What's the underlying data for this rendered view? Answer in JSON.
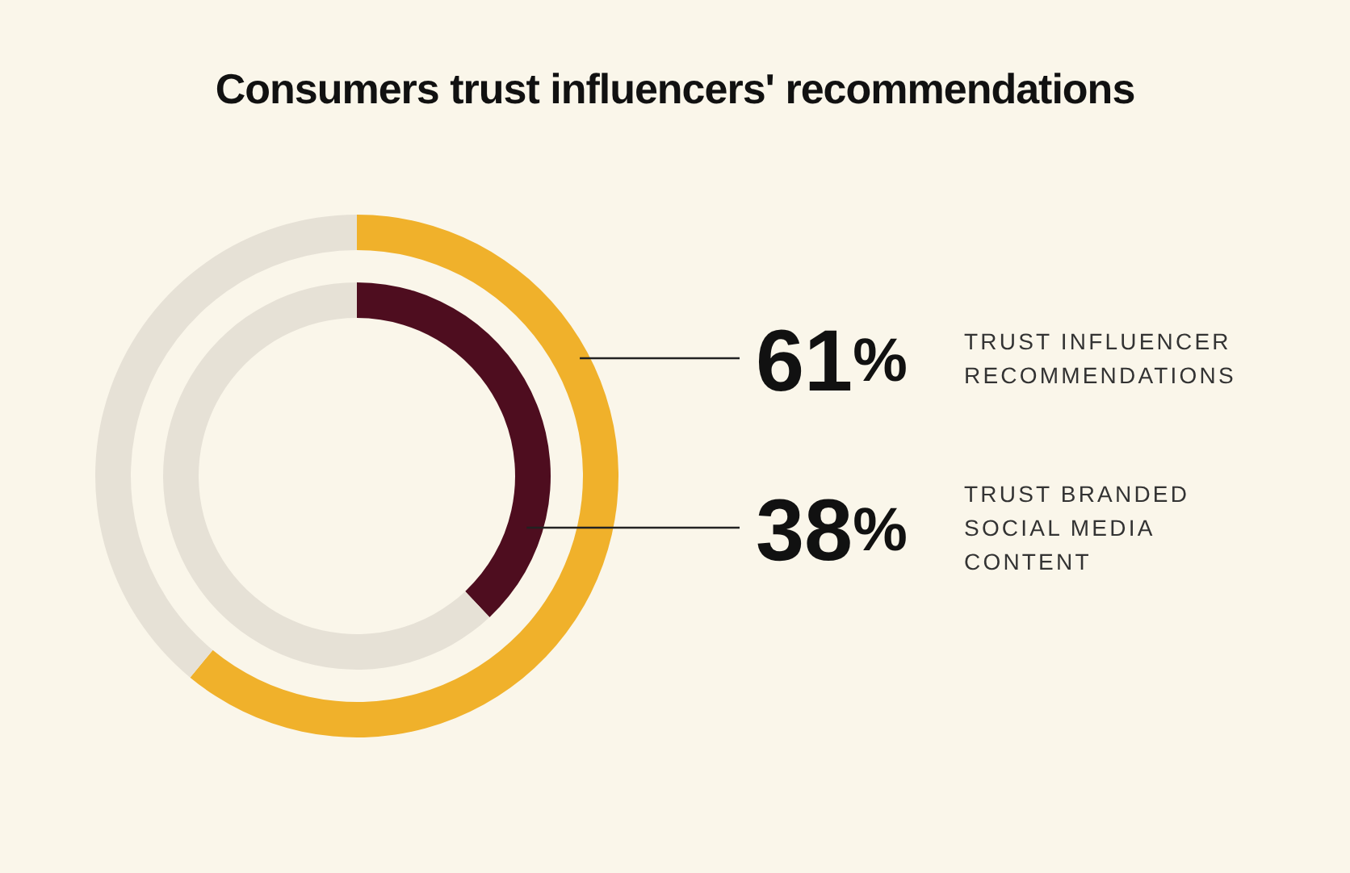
{
  "chart_data": {
    "type": "donut",
    "title": "Consumers trust influencers' recommendations",
    "categories": [
      null,
      null
    ],
    "series": [
      {
        "name": "TRUST INFLUENCER RECOMMENDATIONS",
        "colors": [
          "#f0b12b",
          "#e6e1d6"
        ],
        "values": [
          61,
          39
        ],
        "value_labels": [
          "61%",
          null
        ]
      },
      {
        "name": "TRUST BRANDED SOCIAL MEDIA CONTENT",
        "colors": [
          "#4e0d1f",
          "#e6e1d6"
        ],
        "values": [
          38,
          62
        ],
        "value_labels": [
          "38%",
          null
        ]
      }
    ],
    "legend": false
  }
}
